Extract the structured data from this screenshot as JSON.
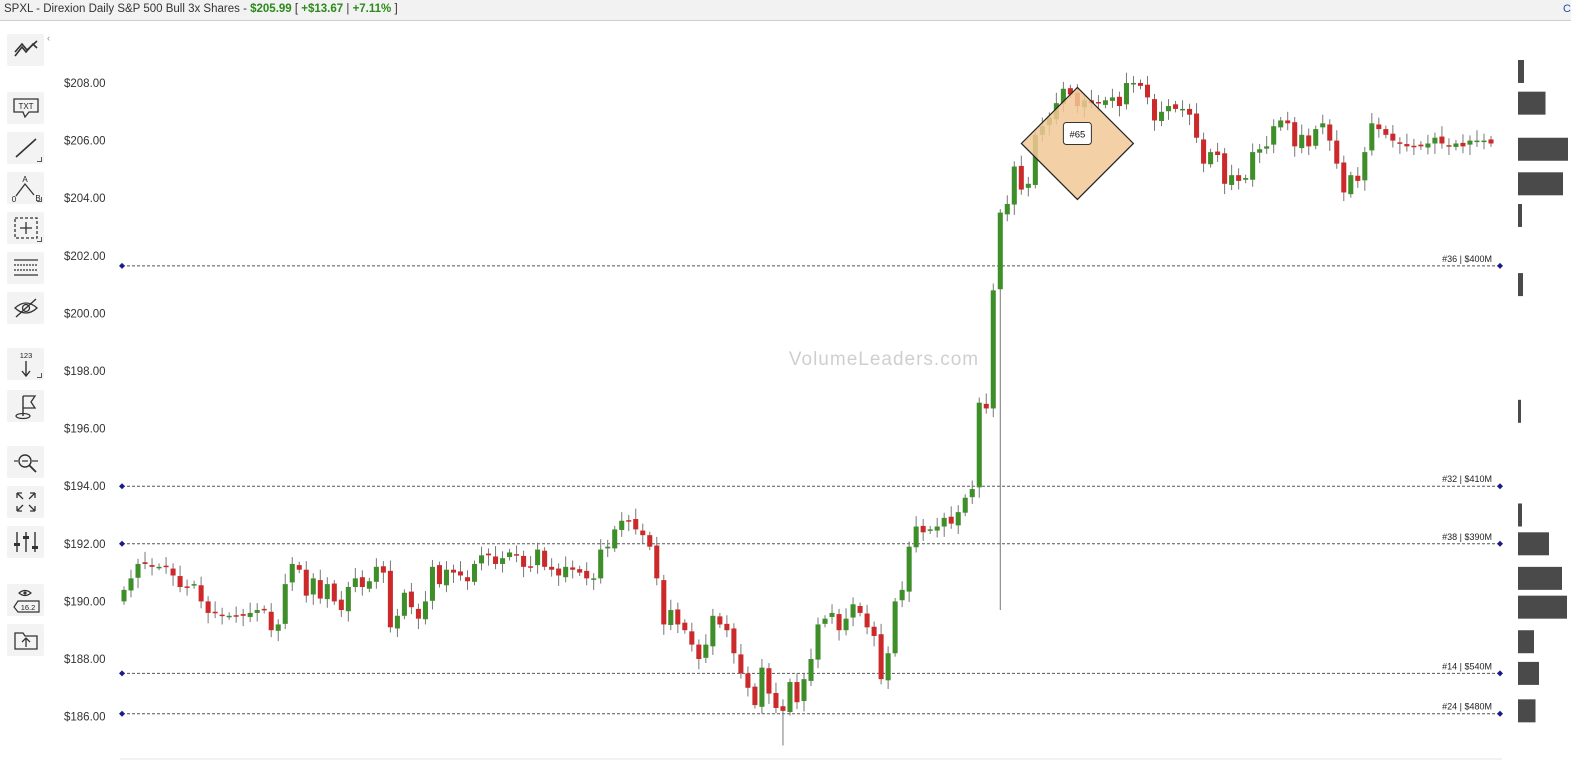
{
  "header": {
    "title": "SPXL - Direxion Daily S&P 500 Bull 3x Shares",
    "separator": " - ",
    "price": "$205.99",
    "bracket_open": " [ ",
    "change": "+$13.67",
    "divider": " | ",
    "change_pct": "+7.11%",
    "bracket_close": " ]",
    "corner_text": "C"
  },
  "toolbar": {
    "items": [
      {
        "name": "indicators",
        "icon": "line-chart-icon"
      },
      {
        "name": "text",
        "icon": "text-note-icon",
        "label": "TXT"
      },
      {
        "name": "trend-line",
        "icon": "trend-line-icon"
      },
      {
        "name": "pattern",
        "icon": "abc-pattern-icon",
        "labels": [
          "A",
          "0",
          "B"
        ]
      },
      {
        "name": "crosshair",
        "icon": "crosshair-icon"
      },
      {
        "name": "levels",
        "icon": "horizontal-lines-icon"
      },
      {
        "name": "hide",
        "icon": "eye-off-icon"
      },
      {
        "name": "sort",
        "icon": "sort-numeric-icon",
        "label": "123"
      },
      {
        "name": "flag",
        "icon": "flag-icon"
      },
      {
        "name": "zoom",
        "icon": "zoom-icon"
      },
      {
        "name": "fit",
        "icon": "expand-icon"
      },
      {
        "name": "adjust",
        "icon": "sliders-icon"
      },
      {
        "name": "price-label",
        "icon": "price-tag-icon",
        "label": "16.2"
      },
      {
        "name": "save",
        "icon": "folder-upload-icon"
      }
    ]
  },
  "watermark": "VolumeLeaders.com",
  "colors": {
    "up": "#3e8e2a",
    "down": "#cc2a2a",
    "wick": "#777777",
    "level_line": "#555555",
    "level_dot": "#1a1a8c",
    "volume_bar": "#4a4a4a",
    "highlight_fill": "#f2c896",
    "highlight_stroke": "#222222"
  },
  "chart_data": {
    "type": "candlestick",
    "y_ticks": [
      "$208.00",
      "$206.00",
      "$204.00",
      "$202.00",
      "$200.00",
      "$198.00",
      "$196.00",
      "$194.00",
      "$192.00",
      "$190.00",
      "$188.00",
      "$186.00"
    ],
    "ylim": [
      184.5,
      209.2
    ],
    "levels": [
      {
        "price": 201.65,
        "label": "#36 | $400M"
      },
      {
        "price": 194.0,
        "label": "#32 | $410M"
      },
      {
        "price": 192.0,
        "label": "#38 | $390M"
      },
      {
        "price": 187.5,
        "label": "#14 | $540M"
      },
      {
        "price": 186.1,
        "label": "#24 | $480M"
      }
    ],
    "marker": {
      "label": "#65",
      "price": 205.9,
      "bar": 136
    },
    "volume_profile": [
      {
        "price": 208.4,
        "size": 0.12
      },
      {
        "price": 207.3,
        "size": 0.55
      },
      {
        "price": 205.7,
        "size": 1.0
      },
      {
        "price": 204.5,
        "size": 0.9
      },
      {
        "price": 203.4,
        "size": 0.08
      },
      {
        "price": 201.0,
        "size": 0.1
      },
      {
        "price": 196.6,
        "size": 0.05
      },
      {
        "price": 193.0,
        "size": 0.08
      },
      {
        "price": 192.0,
        "size": 0.62
      },
      {
        "price": 190.8,
        "size": 0.88
      },
      {
        "price": 189.8,
        "size": 0.98
      },
      {
        "price": 188.6,
        "size": 0.32
      },
      {
        "price": 187.5,
        "size": 0.42
      },
      {
        "price": 186.2,
        "size": 0.35
      }
    ],
    "closes": [
      190.4,
      190.8,
      191.3,
      191.3,
      191.2,
      191.2,
      191.2,
      190.9,
      190.5,
      190.5,
      190.6,
      190.0,
      189.6,
      189.6,
      189.5,
      189.5,
      189.5,
      189.5,
      189.6,
      189.7,
      189.7,
      189.0,
      189.2,
      190.6,
      191.3,
      191.1,
      190.2,
      190.8,
      190.1,
      190.6,
      190.0,
      189.7,
      190.5,
      190.8,
      190.5,
      190.7,
      191.2,
      191.0,
      189.1,
      189.5,
      190.3,
      189.8,
      189.4,
      190.0,
      191.2,
      190.6,
      191.1,
      191.0,
      190.9,
      190.7,
      191.3,
      191.6,
      191.6,
      191.3,
      191.5,
      191.7,
      191.6,
      191.2,
      191.2,
      191.8,
      191.2,
      191.1,
      190.9,
      191.2,
      191.1,
      191.0,
      190.8,
      190.8,
      191.8,
      191.9,
      192.5,
      192.8,
      192.8,
      192.5,
      192.3,
      191.9,
      190.8,
      189.2,
      189.7,
      189.2,
      189.0,
      188.5,
      188.0,
      188.5,
      189.5,
      189.2,
      189.0,
      188.2,
      187.5,
      187.0,
      186.4,
      187.7,
      186.8,
      186.3,
      186.2,
      187.2,
      186.5,
      187.3,
      188.0,
      189.2,
      189.4,
      189.6,
      189.0,
      189.4,
      189.9,
      189.6,
      189.1,
      188.8,
      187.3,
      188.2,
      190.0,
      190.4,
      191.9,
      192.6,
      192.4,
      192.5,
      192.6,
      192.9,
      192.7,
      193.1,
      193.6,
      193.9,
      196.9,
      196.7,
      200.8,
      203.5,
      203.8,
      205.1,
      204.3,
      204.5,
      206.2,
      206.5,
      206.8,
      207.3,
      207.8,
      207.6,
      207.2,
      207.4,
      207.3,
      207.3,
      207.4,
      207.5,
      207.2,
      208.0,
      208.0,
      207.9,
      207.5,
      206.7,
      207.0,
      207.2,
      207.1,
      207.1,
      206.9,
      206.1,
      205.2,
      205.6,
      205.5,
      204.5,
      204.8,
      204.6,
      204.7,
      205.6,
      205.7,
      205.8,
      206.5,
      206.7,
      206.6,
      205.8,
      206.2,
      205.8,
      206.4,
      206.6,
      206.0,
      205.2,
      204.2,
      204.8,
      204.6,
      205.6,
      206.6,
      206.4,
      206.2,
      206.0,
      205.9,
      205.8,
      205.8,
      205.8,
      205.9,
      206.1,
      205.9,
      205.8,
      205.9,
      205.8,
      206.0,
      206.0,
      206.0,
      205.9
    ]
  }
}
